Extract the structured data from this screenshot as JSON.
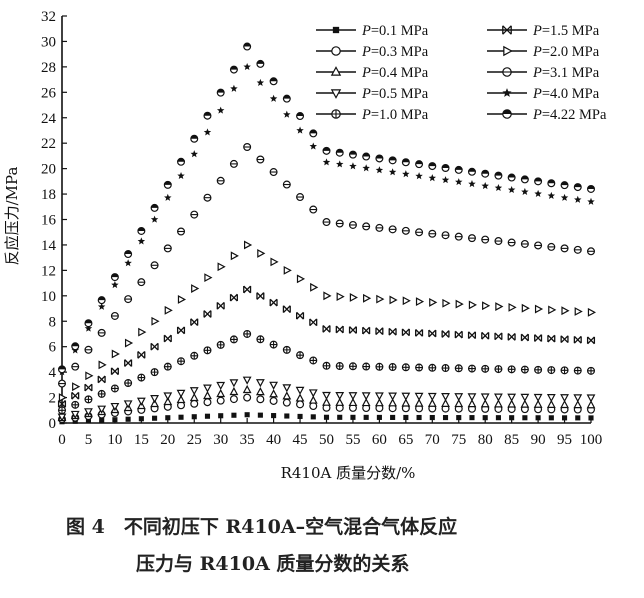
{
  "caption": {
    "line1": "图 4　不同初压下 R410A–空气混合气体反应",
    "line2": "压力与 R410A 质量分数的关系"
  },
  "chart_data": {
    "type": "scatter",
    "title": "",
    "xlabel": "R410A 质量分数/%",
    "ylabel": "反应压力/MPa",
    "xlim": [
      0,
      100
    ],
    "ylim": [
      0,
      32
    ],
    "xticks": [
      0,
      5,
      10,
      15,
      20,
      25,
      30,
      35,
      40,
      45,
      50,
      55,
      60,
      65,
      70,
      75,
      80,
      85,
      90,
      95,
      100
    ],
    "yticks": [
      0,
      2,
      4,
      6,
      8,
      10,
      12,
      14,
      16,
      18,
      20,
      22,
      24,
      26,
      28,
      30,
      32
    ],
    "grid": false,
    "legend_position": "top-right",
    "x": [
      0,
      2.5,
      5,
      7.5,
      10,
      12.5,
      15,
      17.5,
      20,
      22.5,
      25,
      27.5,
      30,
      32.5,
      35,
      37.5,
      40,
      42.5,
      45,
      47.5,
      50,
      52.5,
      55,
      57.5,
      60,
      62.5,
      65,
      67.5,
      70,
      72.5,
      75,
      77.5,
      80,
      82.5,
      85,
      87.5,
      90,
      92.5,
      95,
      97.5,
      100
    ],
    "series": [
      {
        "name": "P=0.1 MPa",
        "marker": "filled-square",
        "initial": 0.1,
        "peak": 0.65,
        "at50": 0.45,
        "at100": 0.4
      },
      {
        "name": "P=0.3 MPa",
        "marker": "circle",
        "initial": 0.3,
        "peak": 2.0,
        "at50": 1.2,
        "at100": 1.05
      },
      {
        "name": "P=0.4 MPa",
        "marker": "triangle-up",
        "initial": 0.4,
        "peak": 2.6,
        "at50": 1.6,
        "at100": 1.4
      },
      {
        "name": "P=0.5 MPa",
        "marker": "triangle-down",
        "initial": 0.5,
        "peak": 3.4,
        "at50": 2.2,
        "at100": 2.0
      },
      {
        "name": "P=1.0 MPa",
        "marker": "circle-plus",
        "initial": 1.0,
        "peak": 7.0,
        "at50": 4.5,
        "at100": 4.1
      },
      {
        "name": "P=1.5 MPa",
        "marker": "bowtie",
        "initial": 1.5,
        "peak": 10.5,
        "at50": 7.4,
        "at100": 6.5
      },
      {
        "name": "P=2.0 MPa",
        "marker": "triangle-right",
        "initial": 2.0,
        "peak": 14.0,
        "at50": 10.0,
        "at100": 8.7
      },
      {
        "name": "P=3.1 MPa",
        "marker": "circle-hline",
        "initial": 3.1,
        "peak": 21.7,
        "at50": 15.8,
        "at100": 13.5
      },
      {
        "name": "P=4.0 MPa",
        "marker": "star",
        "initial": 4.0,
        "peak": 28.0,
        "at50": 20.5,
        "at100": 17.4
      },
      {
        "name": "P=4.22 MPa",
        "marker": "half-filled-circle",
        "initial": 4.22,
        "peak": 29.6,
        "at50": 21.4,
        "at100": 18.4
      }
    ]
  }
}
